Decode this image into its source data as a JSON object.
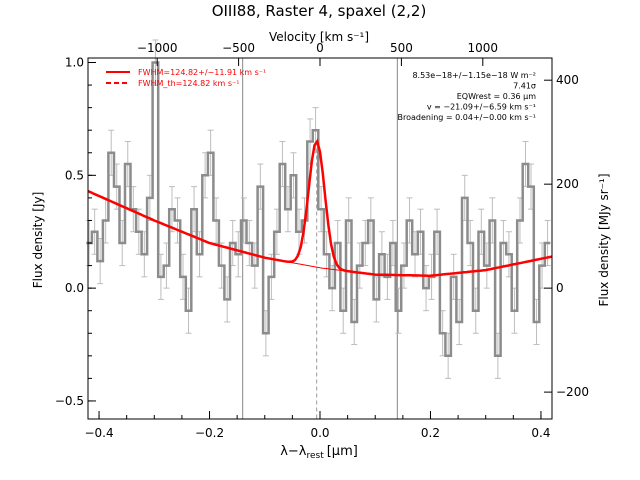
{
  "chart_data": {
    "type": "line",
    "title": "OIII88, Raster 4, spaxel (2,2)",
    "xlabel": "λ−λrest [μm]",
    "xlabel_main": "λ−λ",
    "xlabel_sub": "rest",
    "xlabel_units": "[μm]",
    "ylabel": "Flux density [Jy]",
    "ylabel_right": "Flux density [MJy sr⁻¹]",
    "top_axis_label": "Velocity [km s⁻¹]",
    "xlim": [
      -0.42,
      0.42
    ],
    "ylim": [
      -0.58,
      1.02
    ],
    "x_ticks": [
      -0.4,
      -0.2,
      0.0,
      0.2,
      0.4
    ],
    "x_tick_labels": [
      "−0.4",
      "−0.2",
      "0.0",
      "0.2",
      "0.4"
    ],
    "y_ticks": [
      -0.5,
      0.0,
      0.5,
      1.0
    ],
    "y_tick_labels": [
      "−0.5",
      "0.0",
      "0.5",
      "1.0"
    ],
    "top_ticks_kms": [
      -1000,
      -500,
      0,
      500,
      1000
    ],
    "top_tick_labels": [
      "−1000",
      "−500",
      "0",
      "500",
      "1000"
    ],
    "right_ticks_mjysr": [
      -200,
      0,
      200,
      400
    ],
    "right_tick_labels": [
      "−200",
      "0",
      "200",
      "400"
    ],
    "right_scale_mjysr_per_jy": 434,
    "legend": [
      {
        "text": "FWHM=124.82+/−11.91 km s⁻¹",
        "style": "solid",
        "color": "#ff0000"
      },
      {
        "text": "FWHM_th=124.82 km s⁻¹",
        "style": "dashed",
        "color": "#ff0000"
      }
    ],
    "legend_position": "top-left",
    "annotations": [
      "8.53e−18+/−1.15e−18 W m⁻²",
      "7.41σ",
      "EQWrest = 0.36 μm",
      "v = −21.09+/−6.59 km s⁻¹",
      "Broadening = 0.04+/−0.00 km s⁻¹"
    ],
    "annotation_position": "top-right",
    "vertical_lines": [
      -0.14,
      0.14
    ],
    "line_center": -0.006,
    "grid": false,
    "series": [
      {
        "name": "spectrum",
        "style": "histogram",
        "color": "#8c8c8c",
        "x": [
          -0.418,
          -0.408,
          -0.398,
          -0.388,
          -0.378,
          -0.368,
          -0.358,
          -0.348,
          -0.338,
          -0.328,
          -0.318,
          -0.308,
          -0.298,
          -0.288,
          -0.278,
          -0.268,
          -0.258,
          -0.248,
          -0.238,
          -0.228,
          -0.218,
          -0.208,
          -0.198,
          -0.188,
          -0.178,
          -0.168,
          -0.158,
          -0.148,
          -0.138,
          -0.128,
          -0.118,
          -0.108,
          -0.098,
          -0.088,
          -0.078,
          -0.068,
          -0.058,
          -0.048,
          -0.038,
          -0.028,
          -0.018,
          -0.008,
          0.002,
          0.012,
          0.022,
          0.032,
          0.042,
          0.052,
          0.062,
          0.072,
          0.082,
          0.092,
          0.102,
          0.112,
          0.122,
          0.132,
          0.142,
          0.152,
          0.162,
          0.172,
          0.182,
          0.192,
          0.202,
          0.212,
          0.222,
          0.232,
          0.242,
          0.252,
          0.262,
          0.272,
          0.282,
          0.292,
          0.302,
          0.312,
          0.322,
          0.332,
          0.342,
          0.352,
          0.362,
          0.372,
          0.382,
          0.392,
          0.402,
          0.412
        ],
        "y": [
          0.2,
          0.25,
          0.12,
          0.3,
          0.6,
          0.45,
          0.2,
          0.55,
          0.35,
          0.25,
          0.15,
          0.4,
          1.0,
          0.05,
          0.1,
          0.35,
          0.3,
          0.05,
          -0.1,
          0.35,
          0.15,
          0.5,
          0.6,
          0.3,
          0.1,
          -0.05,
          0.2,
          0.15,
          0.3,
          0.2,
          0.1,
          0.45,
          -0.2,
          0.05,
          0.25,
          0.55,
          0.35,
          0.5,
          0.25,
          0.3,
          0.65,
          0.7,
          0.35,
          0.15,
          0.0,
          0.2,
          -0.1,
          0.3,
          -0.15,
          0.1,
          0.2,
          0.3,
          -0.05,
          0.15,
          0.05,
          0.2,
          -0.1,
          0.1,
          0.3,
          0.15,
          0.25,
          0.0,
          0.05,
          0.25,
          -0.2,
          -0.3,
          0.05,
          -0.15,
          0.4,
          0.2,
          -0.1,
          0.25,
          0.1,
          0.3,
          -0.3,
          0.2,
          0.15,
          -0.1,
          0.3,
          0.55,
          0.45,
          -0.15,
          0.1,
          0.2
        ],
        "yerr": 0.1
      },
      {
        "name": "FWHM=124.82+/−11.91 km s⁻¹",
        "style": "solid",
        "color": "#ff0000",
        "model": "continuum + gaussian",
        "continuum_x": [
          -0.42,
          -0.3,
          -0.2,
          -0.1,
          0.0,
          0.1,
          0.2,
          0.3,
          0.42
        ],
        "continuum_y": [
          0.43,
          0.3,
          0.2,
          0.135,
          0.09,
          0.06,
          0.055,
          0.08,
          0.14
        ],
        "peak_amplitude": 0.56,
        "peak_sigma_um": 0.0145
      },
      {
        "name": "FWHM_th=124.82 km s⁻¹",
        "style": "dashed",
        "color": "#ff0000"
      }
    ]
  }
}
